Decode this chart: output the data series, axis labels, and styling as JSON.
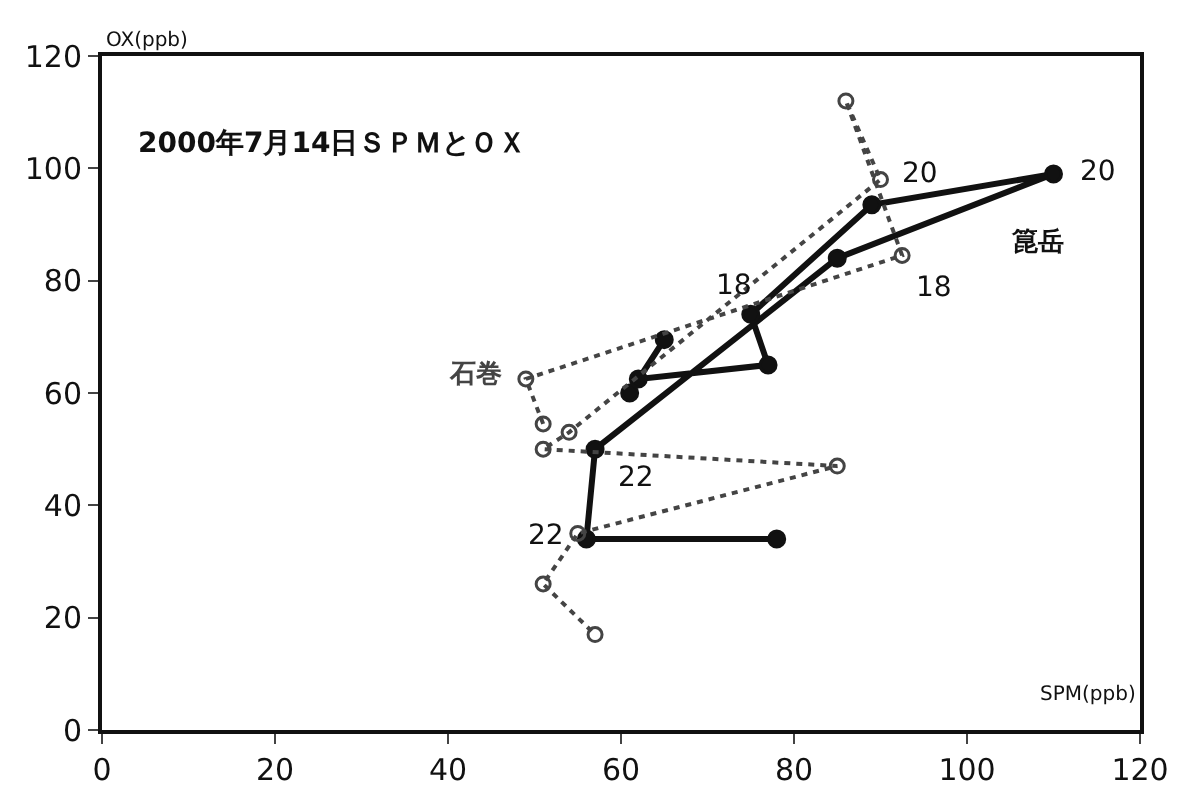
{
  "chart_data": {
    "type": "line",
    "title": "2000年7月14日ＳＰＭとＯＸ",
    "xlabel": "SPM(ppb)",
    "ylabel": "OX(ppb)",
    "x": [
      65,
      61,
      62,
      77,
      75,
      89,
      110,
      85,
      57,
      56,
      78
    ],
    "series": [
      {
        "name": "箟岳",
        "color": "#111111",
        "line_style": "solid",
        "marker": "circle",
        "values": [
          69.5,
          60,
          62.5,
          65,
          74,
          93.5,
          99,
          84,
          50,
          34,
          34
        ]
      },
      {
        "name": "石巻",
        "color": "#444444",
        "line_style": "dotted",
        "marker": "circle",
        "x": [
          51,
          49,
          92.5,
          86,
          90,
          54,
          51,
          85,
          55,
          51,
          57
        ],
        "values": [
          54.5,
          62.5,
          84.5,
          112,
          98,
          53,
          50,
          47,
          35,
          26,
          17
        ]
      }
    ],
    "annotations": [
      {
        "text": "18",
        "x": 75,
        "y": 74
      },
      {
        "text": "20",
        "x": 110,
        "y": 99
      },
      {
        "text": "22",
        "x": 56,
        "y": 34
      },
      {
        "text": "18",
        "x": 92.5,
        "y": 84.5
      },
      {
        "text": "20",
        "x": 90,
        "y": 98
      },
      {
        "text": "22",
        "x": 57,
        "y": 50
      }
    ],
    "xlim": [
      0,
      120
    ],
    "ylim": [
      0,
      120
    ],
    "xticks": [
      0,
      20,
      40,
      60,
      80,
      100,
      120
    ],
    "yticks": [
      0,
      20,
      40,
      60,
      80,
      100,
      120
    ],
    "legend": false
  }
}
